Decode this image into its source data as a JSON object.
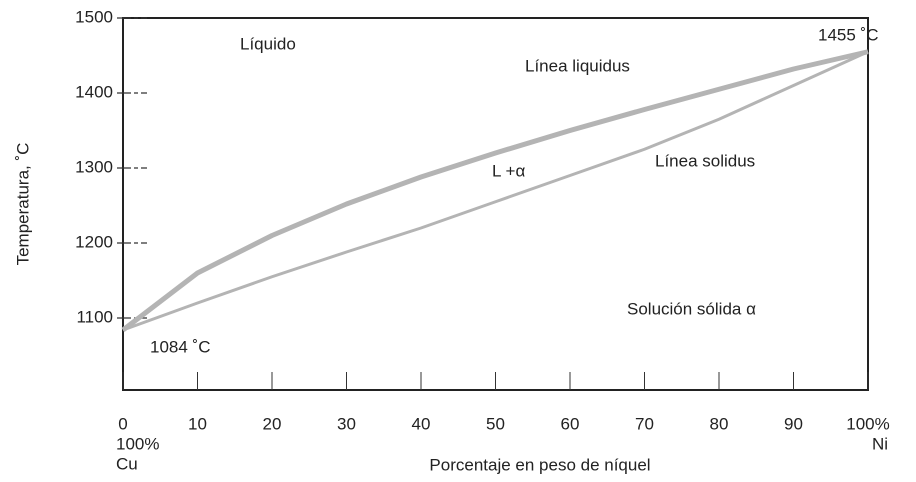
{
  "chart_data": {
    "type": "line",
    "x_label": "Porcentaje en peso de níquel",
    "y_label": "Temperatura, ˚C",
    "x": [
      0,
      10,
      20,
      30,
      40,
      50,
      60,
      70,
      80,
      90,
      100
    ],
    "series": [
      {
        "name": "Línea liquidus",
        "color": "#b4b4b4",
        "values": [
          1084,
          1160,
          1210,
          1252,
          1288,
          1320,
          1350,
          1378,
          1405,
          1432,
          1455
        ]
      },
      {
        "name": "Línea solidus",
        "color": "#b4b4b4",
        "values": [
          1084,
          1120,
          1155,
          1188,
          1220,
          1255,
          1290,
          1325,
          1365,
          1410,
          1455
        ]
      }
    ],
    "xlim": [
      0,
      100
    ],
    "xticks": [
      0,
      10,
      20,
      30,
      40,
      50,
      60,
      70,
      80,
      90,
      {
        "value": 100,
        "label": "100%"
      }
    ],
    "ylim": [
      1004,
      1500
    ],
    "yticks": [
      1100,
      1200,
      1300,
      1400,
      1500
    ],
    "x_end_labels": [
      "100%",
      "Cu",
      "Ni"
    ],
    "annotations": [
      "Líquido",
      "1455 ˚C",
      "L +α",
      "Solución sólida α",
      "1084 ˚C"
    ]
  }
}
